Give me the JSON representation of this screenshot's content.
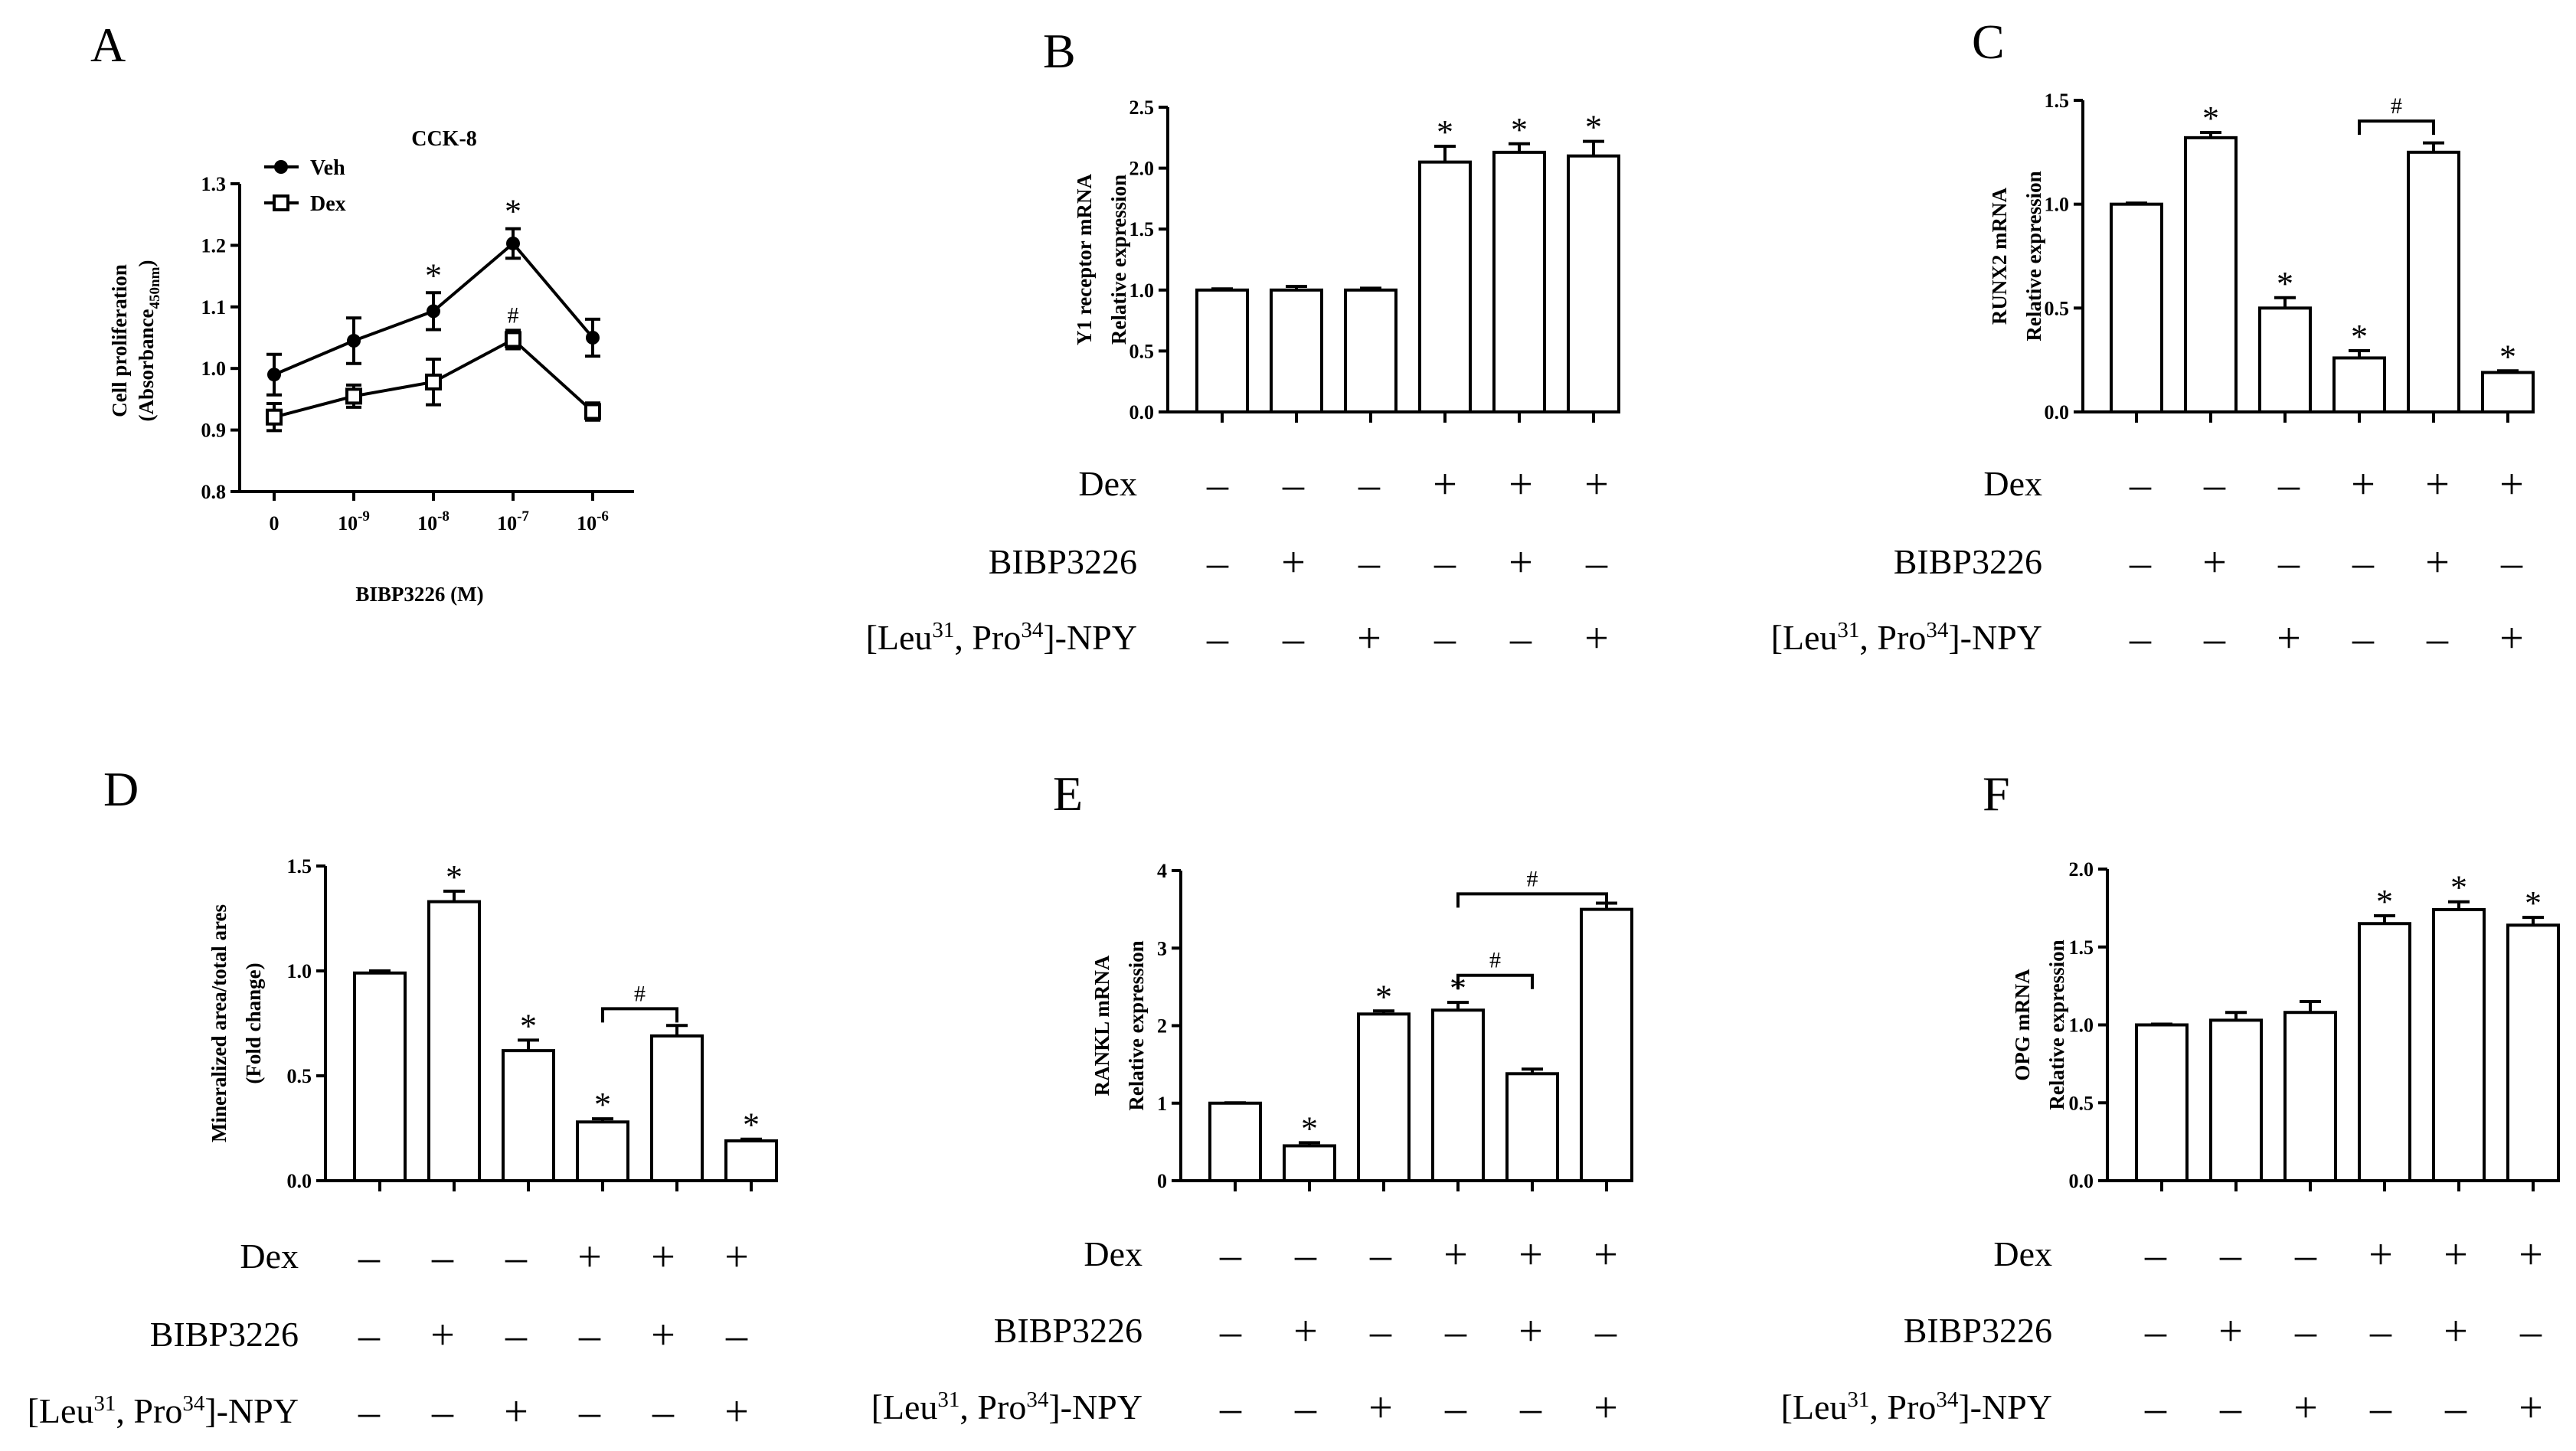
{
  "chart_data": [
    {
      "panel": "A",
      "type": "line",
      "title": "CCK-8",
      "ylabel": "Cell proliferation",
      "ylabel_sub": "(Absorbance",
      "ylabel_subscript": "450nm",
      "ylabel_close": ")",
      "xlabel": "BIBP3226 (M)",
      "categories": [
        {
          "base": "0",
          "exp": ""
        },
        {
          "base": "10",
          "exp": "-9"
        },
        {
          "base": "10",
          "exp": "-8"
        },
        {
          "base": "10",
          "exp": "-7"
        },
        {
          "base": "10",
          "exp": "-6"
        }
      ],
      "ylim": [
        0.8,
        1.3
      ],
      "yticks": [
        "0.8",
        "0.9",
        "1.0",
        "1.1",
        "1.2",
        "1.3"
      ],
      "series": [
        {
          "name": "Veh",
          "marker": "filled-circle",
          "values": [
            0.99,
            1.045,
            1.093,
            1.203,
            1.05
          ],
          "errors": [
            0.033,
            0.037,
            0.03,
            0.024,
            0.03
          ],
          "annotations": [
            "",
            "",
            "*",
            "*",
            ""
          ]
        },
        {
          "name": "Dex",
          "marker": "open-square",
          "values": [
            0.921,
            0.955,
            0.978,
            1.047,
            0.93
          ],
          "errors": [
            0.022,
            0.018,
            0.037,
            0.015,
            0.014
          ],
          "annotations": [
            "",
            "",
            "",
            "#",
            ""
          ]
        }
      ]
    },
    {
      "panel": "B",
      "type": "bar",
      "ylabel": "Y1 receptor mRNA",
      "ylabel2": "Relative expression",
      "ylim": [
        0,
        2.5
      ],
      "yticks": [
        "0.0",
        "0.5",
        "1.0",
        "1.5",
        "2.0",
        "2.5"
      ],
      "values": [
        1.0,
        1.0,
        1.0,
        2.05,
        2.13,
        2.1
      ],
      "errors": [
        0.01,
        0.03,
        0.015,
        0.13,
        0.07,
        0.12
      ],
      "annotations": [
        "",
        "",
        "",
        "*",
        "*",
        "*"
      ],
      "brackets": []
    },
    {
      "panel": "C",
      "type": "bar",
      "ylabel": "RUNX2  mRNA",
      "ylabel2": "Relative expression",
      "ylim": [
        0,
        1.5
      ],
      "yticks": [
        "0.0",
        "0.5",
        "1.0",
        "1.5"
      ],
      "values": [
        1.0,
        1.32,
        0.5,
        0.26,
        1.25,
        0.19
      ],
      "errors": [
        0.005,
        0.025,
        0.05,
        0.035,
        0.045,
        0.008
      ],
      "annotations": [
        "",
        "*",
        "*",
        "*",
        "",
        "*"
      ],
      "brackets": [
        {
          "from": 3,
          "to": 4,
          "y": 1.4,
          "label": "#"
        }
      ]
    },
    {
      "panel": "D",
      "type": "bar",
      "ylabel": "Mineralized area/total ares",
      "ylabel2": "(Fold change)",
      "ylim": [
        0,
        1.5
      ],
      "yticks": [
        "0.0",
        "0.5",
        "1.0",
        "1.5"
      ],
      "values": [
        0.99,
        1.33,
        0.62,
        0.28,
        0.69,
        0.19
      ],
      "errors": [
        0.01,
        0.05,
        0.05,
        0.015,
        0.05,
        0.008
      ],
      "annotations": [
        "",
        "*",
        "*",
        "*",
        "",
        "*"
      ],
      "brackets": [
        {
          "from": 3,
          "to": 4,
          "y": 0.82,
          "label": "#"
        }
      ]
    },
    {
      "panel": "E",
      "type": "bar",
      "ylabel": "RANKL mRNA",
      "ylabel2": "Relative expression",
      "ylim": [
        0,
        4
      ],
      "yticks": [
        "0",
        "1",
        "2",
        "3",
        "4"
      ],
      "values": [
        1.0,
        0.45,
        2.15,
        2.2,
        1.38,
        3.5
      ],
      "errors": [
        0.005,
        0.04,
        0.04,
        0.1,
        0.06,
        0.08
      ],
      "annotations": [
        "",
        "*",
        "*",
        "*",
        "",
        ""
      ],
      "brackets": [
        {
          "from": 3,
          "to": 4,
          "y": 2.65,
          "label": "#"
        },
        {
          "from": 3,
          "to": 5,
          "y": 3.7,
          "label": "#"
        }
      ]
    },
    {
      "panel": "F",
      "type": "bar",
      "ylabel": "OPG mRNA",
      "ylabel2": "Relative expression",
      "ylim": [
        0,
        2.0
      ],
      "yticks": [
        "0.0",
        "0.5",
        "1.0",
        "1.5",
        "2.0"
      ],
      "values": [
        1.0,
        1.03,
        1.08,
        1.65,
        1.74,
        1.64
      ],
      "errors": [
        0.005,
        0.05,
        0.07,
        0.05,
        0.05,
        0.05
      ],
      "annotations": [
        "",
        "",
        "",
        "*",
        "*",
        "*"
      ],
      "brackets": []
    }
  ],
  "conditions": {
    "rows": [
      {
        "label": "Dex",
        "signs": [
          "-",
          "-",
          "-",
          "+",
          "+",
          "+"
        ]
      },
      {
        "label": "BIBP3226",
        "signs": [
          "-",
          "+",
          "-",
          "-",
          "+",
          "-"
        ]
      },
      {
        "label_pre": "[Leu",
        "label_sup1": "31",
        "label_mid": ", Pro",
        "label_sup2": "34",
        "label_post": "]-NPY",
        "signs": [
          "-",
          "-",
          "+",
          "-",
          "-",
          "+"
        ]
      }
    ]
  }
}
